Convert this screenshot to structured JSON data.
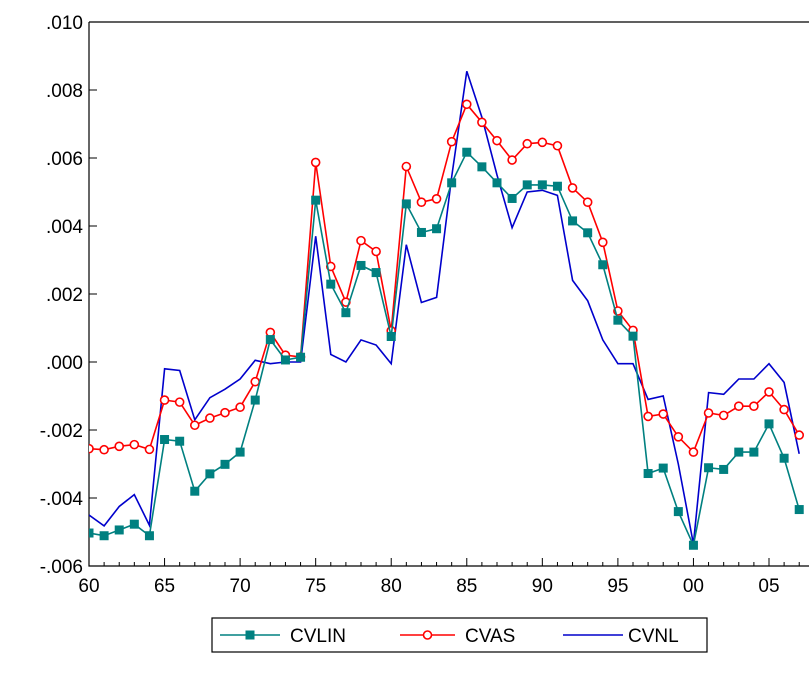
{
  "chart_data": {
    "type": "line",
    "title": "",
    "xlabel": "",
    "ylabel": "",
    "x": [
      1960,
      1961,
      1962,
      1963,
      1964,
      1965,
      1966,
      1967,
      1968,
      1969,
      1970,
      1971,
      1972,
      1973,
      1974,
      1975,
      1976,
      1977,
      1978,
      1979,
      1980,
      1981,
      1982,
      1983,
      1984,
      1985,
      1986,
      1987,
      1988,
      1989,
      1990,
      1991,
      1992,
      1993,
      1994,
      1995,
      1996,
      1997,
      1998,
      1999,
      2000,
      2001,
      2002,
      2003,
      2004,
      2005,
      2006,
      2007
    ],
    "xlim": [
      1960,
      2007
    ],
    "ylim": [
      -0.006,
      0.01
    ],
    "x_ticks": [
      {
        "value": 1960,
        "label": "60"
      },
      {
        "value": 1965,
        "label": "65"
      },
      {
        "value": 1970,
        "label": "70"
      },
      {
        "value": 1975,
        "label": "75"
      },
      {
        "value": 1980,
        "label": "80"
      },
      {
        "value": 1985,
        "label": "85"
      },
      {
        "value": 1990,
        "label": "90"
      },
      {
        "value": 1995,
        "label": "95"
      },
      {
        "value": 2000,
        "label": "00"
      },
      {
        "value": 2005,
        "label": "05"
      }
    ],
    "y_ticks": [
      {
        "value": 0.01,
        "label": ".010"
      },
      {
        "value": 0.008,
        "label": ".008"
      },
      {
        "value": 0.006,
        "label": ".006"
      },
      {
        "value": 0.004,
        "label": ".004"
      },
      {
        "value": 0.002,
        "label": ".002"
      },
      {
        "value": 0.0,
        "label": ".000"
      },
      {
        "value": -0.002,
        "label": "-.002"
      },
      {
        "value": -0.004,
        "label": "-.004"
      },
      {
        "value": -0.006,
        "label": "-.006"
      }
    ],
    "grid": false,
    "legend_position": "bottom-center",
    "series": [
      {
        "name": "CVLIN",
        "color": "#008080",
        "marker": "square",
        "values": [
          -0.00503,
          -0.00511,
          -0.00494,
          -0.00477,
          -0.00511,
          -0.00228,
          -0.00233,
          -0.0038,
          -0.00329,
          -0.00301,
          -0.00265,
          -0.00112,
          0.00066,
          6e-05,
          0.00014,
          0.00476,
          0.00229,
          0.00145,
          0.00284,
          0.00263,
          0.00075,
          0.00465,
          0.00381,
          0.00392,
          0.00527,
          0.00617,
          0.00574,
          0.00527,
          0.00481,
          0.00521,
          0.00521,
          0.00517,
          0.00415,
          0.0038,
          0.00286,
          0.00123,
          0.00076,
          -0.00328,
          -0.00312,
          -0.0044,
          -0.00539,
          -0.00311,
          -0.00316,
          -0.00265,
          -0.00265,
          -0.00182,
          -0.00283,
          -0.00434
        ]
      },
      {
        "name": "CVAS",
        "color": "#ff0000",
        "marker": "circle",
        "values": [
          -0.00255,
          -0.00258,
          -0.00248,
          -0.00243,
          -0.00257,
          -0.00112,
          -0.00118,
          -0.00186,
          -0.00165,
          -0.00149,
          -0.00133,
          -0.00058,
          0.00087,
          0.0002,
          0.00015,
          0.00587,
          0.00281,
          0.00176,
          0.00357,
          0.00325,
          0.00092,
          0.00575,
          0.0047,
          0.0048,
          0.00648,
          0.00758,
          0.00705,
          0.00651,
          0.00594,
          0.00642,
          0.00646,
          0.00636,
          0.00512,
          0.0047,
          0.00352,
          0.0015,
          0.00093,
          -0.0016,
          -0.00153,
          -0.0022,
          -0.00265,
          -0.0015,
          -0.00157,
          -0.0013,
          -0.0013,
          -0.00088,
          -0.0014,
          -0.00215
        ]
      },
      {
        "name": "CVNL",
        "color": "#0000cc",
        "marker": "none",
        "values": [
          -0.0045,
          -0.00482,
          -0.00425,
          -0.0039,
          -0.0048,
          -0.0002,
          -0.00025,
          -0.0017,
          -0.00105,
          -0.0008,
          -0.0005,
          5e-05,
          -5e-05,
          0.0,
          0.0,
          0.0037,
          0.00022,
          0.0,
          0.00065,
          0.0005,
          -5e-05,
          0.00345,
          0.00175,
          0.0019,
          0.00545,
          0.00855,
          0.0072,
          0.0055,
          0.00395,
          0.005,
          0.00505,
          0.0049,
          0.0024,
          0.0018,
          0.00065,
          -5e-05,
          -5e-05,
          -0.0011,
          -0.001,
          -0.003,
          -0.00535,
          -0.0009,
          -0.00095,
          -0.0005,
          -0.0005,
          -5e-05,
          -0.0006,
          -0.0027
        ]
      }
    ]
  }
}
